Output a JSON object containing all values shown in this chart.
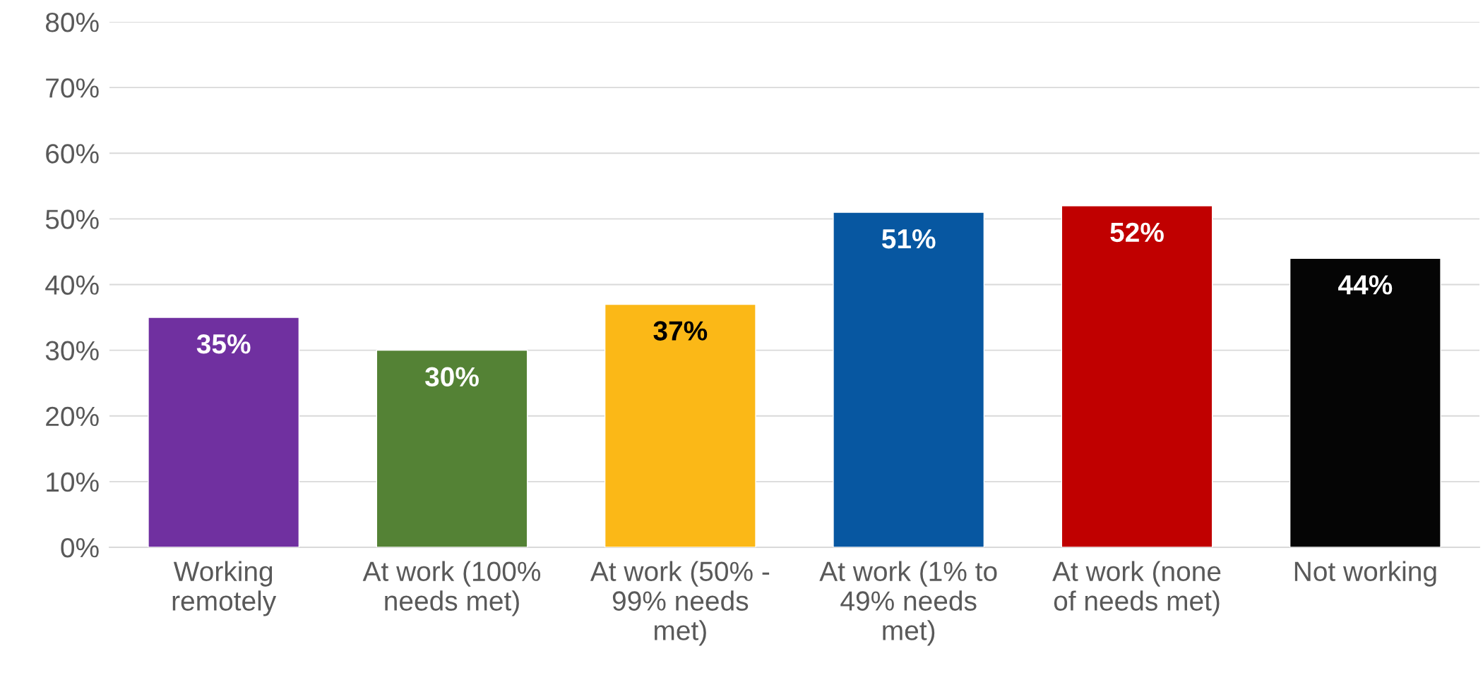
{
  "chart_data": {
    "type": "bar",
    "categories": [
      "Working\nremotely",
      "At work (100%\nneeds met)",
      "At work (50% -\n99% needs\nmet)",
      "At work (1% to\n49% needs\nmet)",
      "At work (none\nof needs met)",
      "Not working"
    ],
    "values": [
      35,
      30,
      37,
      51,
      52,
      44
    ],
    "colors": [
      "#7030a0",
      "#548235",
      "#fbb817",
      "#0757a1",
      "#c00000",
      "#050505"
    ],
    "ylim": [
      0,
      80
    ],
    "yticks": [
      {
        "value": 0,
        "label": "0%"
      },
      {
        "value": 10,
        "label": "10%"
      },
      {
        "value": 20,
        "label": "20%"
      },
      {
        "value": 30,
        "label": "30%"
      },
      {
        "value": 40,
        "label": "40%"
      },
      {
        "value": 50,
        "label": "50%"
      },
      {
        "value": 60,
        "label": "60%"
      },
      {
        "value": 70,
        "label": "70%"
      },
      {
        "value": 80,
        "label": "80%"
      }
    ],
    "value_labels": [
      "35%",
      "30%",
      "37%",
      "51%",
      "52%",
      "44%"
    ],
    "grid": "y",
    "legend": false
  }
}
